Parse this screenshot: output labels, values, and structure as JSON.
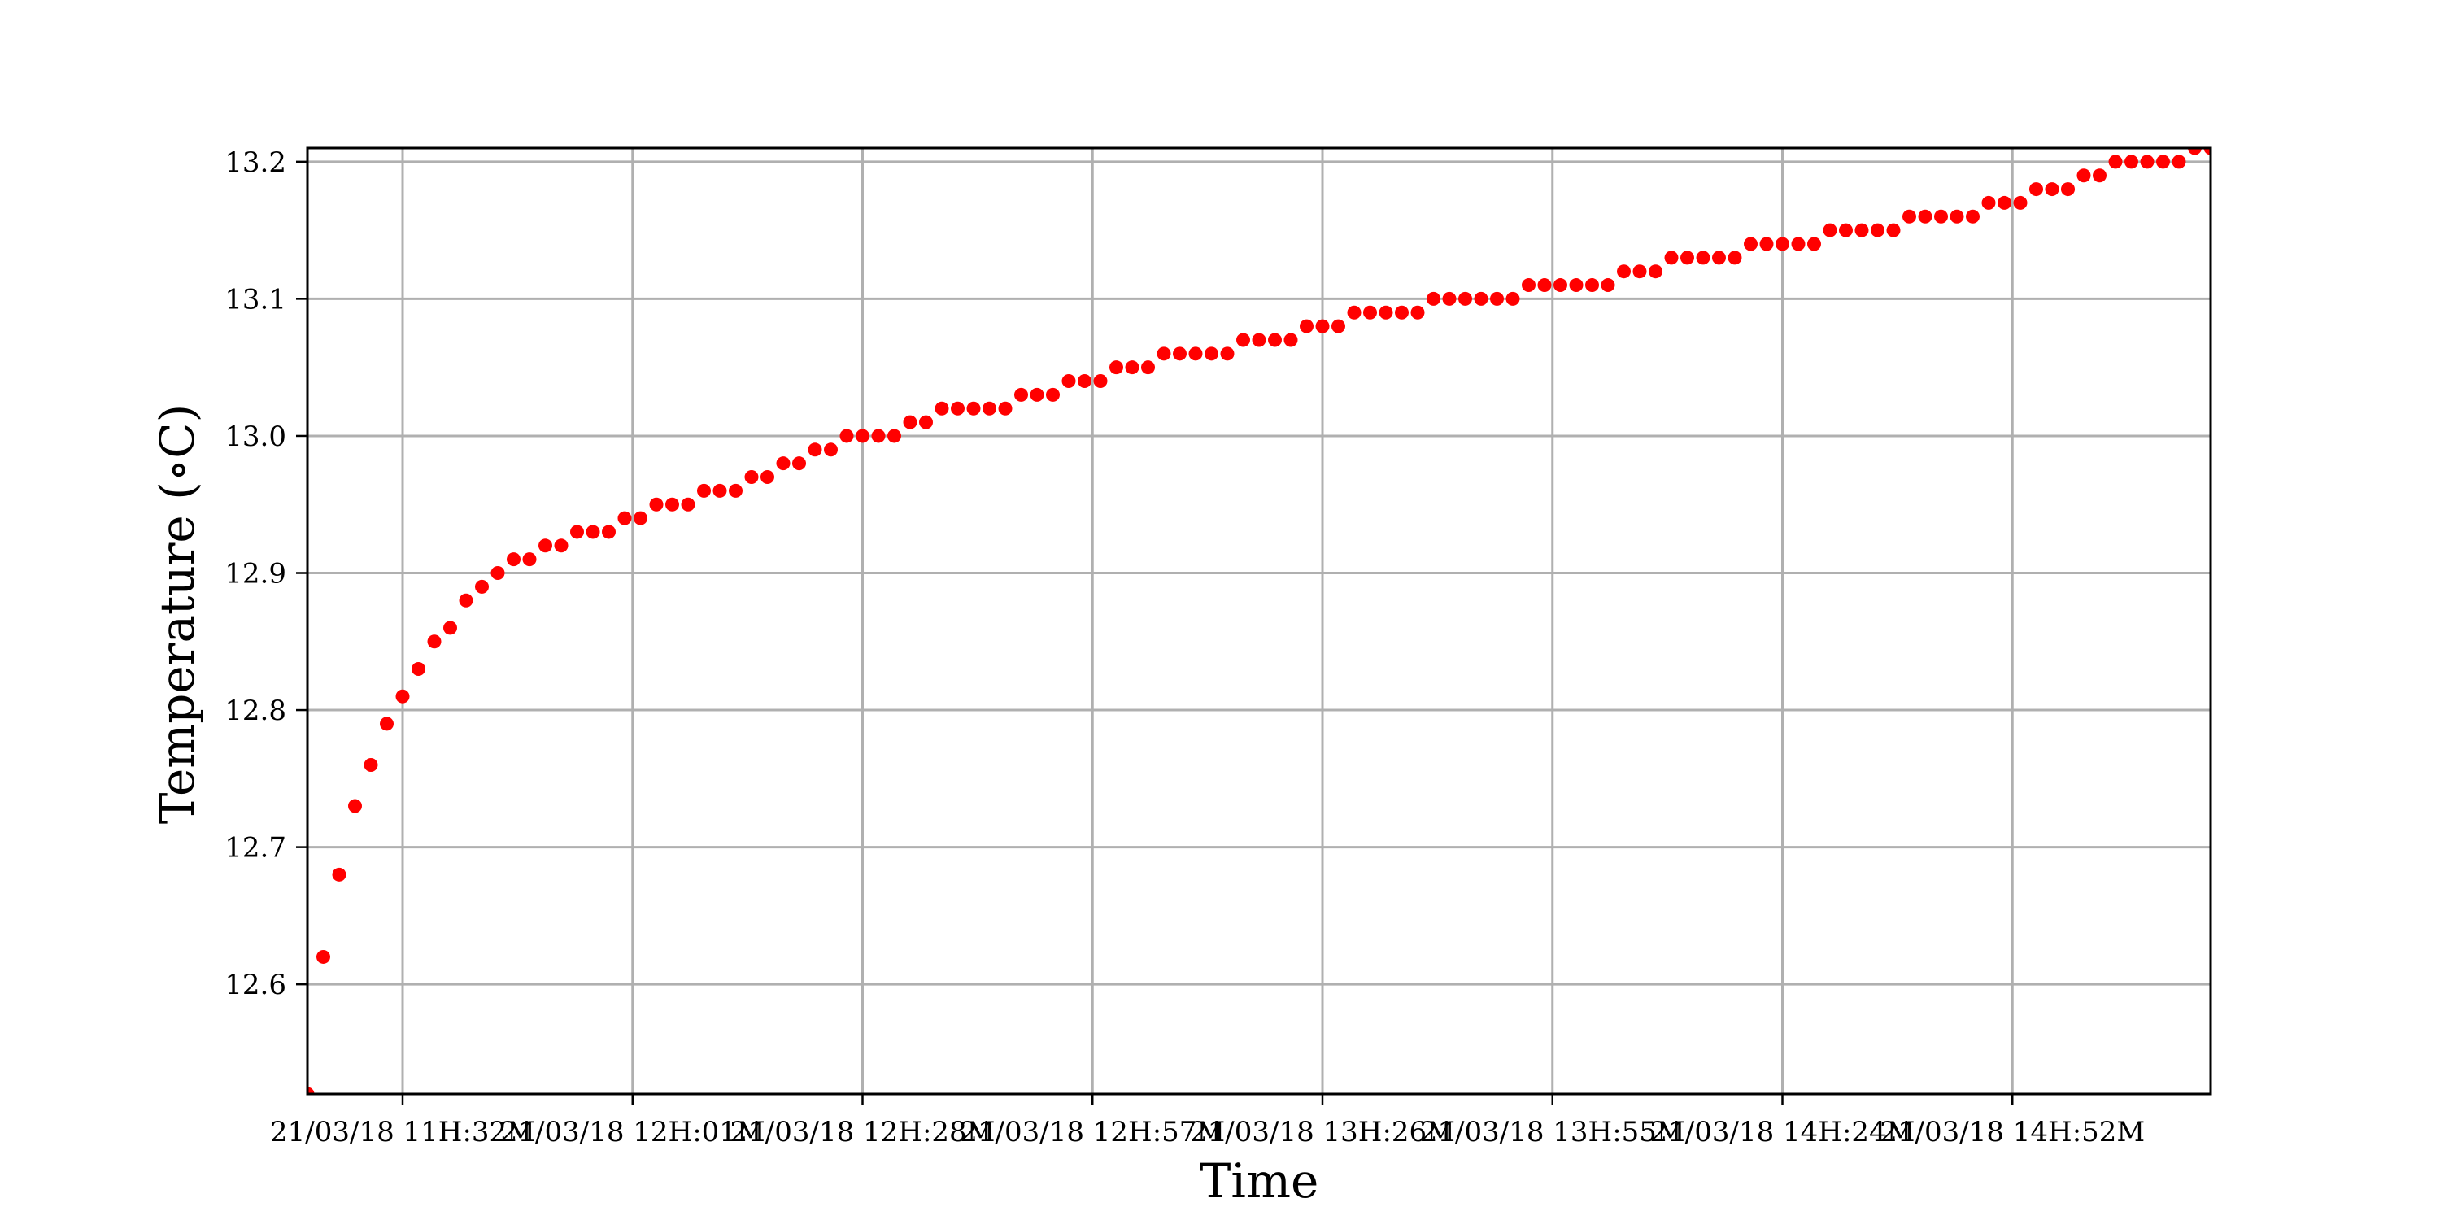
{
  "chart_data": {
    "type": "scatter",
    "xlabel": "Time",
    "ylabel": "Temperature (∘C)",
    "x_tick_labels": [
      "21/03/18 11H:32M",
      "21/03/18 12H:01M",
      "21/03/18 12H:28M",
      "21/03/18 12H:57M",
      "21/03/18 13H:26M",
      "21/03/18 13H:55M",
      "21/03/18 14H:24M",
      "21/03/18 14H:52M"
    ],
    "x_tick_minutes": [
      692,
      721,
      750,
      779,
      808,
      837,
      866,
      895
    ],
    "xlim_minutes": [
      680,
      920
    ],
    "y_ticks": [
      12.6,
      12.7,
      12.8,
      12.9,
      13.0,
      13.1,
      13.2
    ],
    "y_tick_labels": [
      "12.6",
      "12.7",
      "12.8",
      "12.9",
      "13.0",
      "13.1",
      "13.2"
    ],
    "ylim": [
      12.52,
      13.21
    ],
    "grid": true,
    "marker_color": "#ff0000",
    "series": [
      {
        "x_minutes": [
          680,
          682,
          684,
          686,
          688,
          690,
          692,
          694,
          696,
          698,
          700,
          702,
          704,
          706,
          708,
          710,
          712,
          714,
          716,
          718,
          720,
          722,
          724,
          726,
          728,
          730,
          732,
          734,
          736,
          738,
          740,
          742,
          744,
          746,
          748,
          750,
          752,
          754,
          756,
          758,
          760,
          762,
          764,
          766,
          768,
          770,
          772,
          774,
          776,
          778,
          780,
          782,
          784,
          786,
          788,
          790,
          792,
          794,
          796,
          798,
          800,
          802,
          804,
          806,
          808,
          810,
          812,
          814,
          816,
          818,
          820,
          822,
          824,
          826,
          828,
          830,
          832,
          834,
          836,
          838,
          840,
          842,
          844,
          846,
          848,
          850,
          852,
          854,
          856,
          858,
          860,
          862,
          864,
          866,
          868,
          870,
          872,
          874,
          876,
          878,
          880,
          882,
          884,
          886,
          888,
          890,
          892,
          894,
          896,
          898,
          900,
          902,
          904,
          906,
          908,
          910,
          912,
          914,
          916,
          918,
          920
        ],
        "y": [
          12.52,
          12.62,
          12.68,
          12.73,
          12.76,
          12.79,
          12.81,
          12.83,
          12.85,
          12.86,
          12.88,
          12.89,
          12.9,
          12.91,
          12.91,
          12.92,
          12.92,
          12.93,
          12.93,
          12.93,
          12.94,
          12.94,
          12.95,
          12.95,
          12.95,
          12.96,
          12.96,
          12.96,
          12.97,
          12.97,
          12.98,
          12.98,
          12.99,
          12.99,
          13.0,
          13.0,
          13.0,
          13.0,
          13.01,
          13.01,
          13.02,
          13.02,
          13.02,
          13.02,
          13.02,
          13.03,
          13.03,
          13.03,
          13.04,
          13.04,
          13.04,
          13.05,
          13.05,
          13.05,
          13.06,
          13.06,
          13.06,
          13.06,
          13.06,
          13.07,
          13.07,
          13.07,
          13.07,
          13.08,
          13.08,
          13.08,
          13.09,
          13.09,
          13.09,
          13.09,
          13.09,
          13.1,
          13.1,
          13.1,
          13.1,
          13.1,
          13.1,
          13.11,
          13.11,
          13.11,
          13.11,
          13.11,
          13.11,
          13.12,
          13.12,
          13.12,
          13.13,
          13.13,
          13.13,
          13.13,
          13.13,
          13.14,
          13.14,
          13.14,
          13.14,
          13.14,
          13.15,
          13.15,
          13.15,
          13.15,
          13.15,
          13.16,
          13.16,
          13.16,
          13.16,
          13.16,
          13.17,
          13.17,
          13.17,
          13.18,
          13.18,
          13.18,
          13.19,
          13.19,
          13.2,
          13.2,
          13.2,
          13.2,
          13.2,
          13.21,
          13.21
        ]
      }
    ]
  }
}
